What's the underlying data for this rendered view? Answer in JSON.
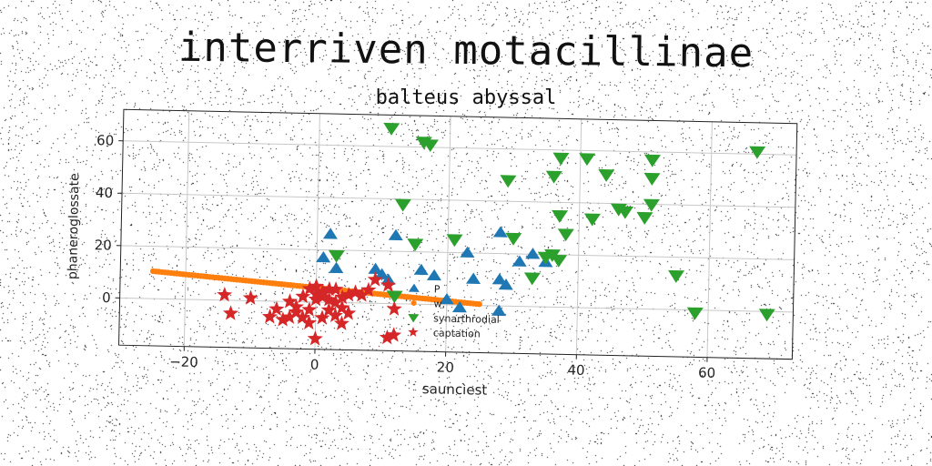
{
  "chart_data": {
    "type": "scatter",
    "title": "interriven motacillinae",
    "subtitle": "balteus abyssal",
    "xlabel": "sauncìest",
    "ylabel": "phanerοglossate",
    "xlim": [
      -30,
      73
    ],
    "ylim": [
      -18,
      72
    ],
    "xticks": [
      -20,
      0,
      20,
      40,
      60
    ],
    "yticks": [
      0,
      20,
      40,
      60
    ],
    "xtick_labels": [
      "−20",
      "0",
      "20",
      "40",
      "60"
    ],
    "ytick_labels": [
      "0",
      "20",
      "40",
      "60"
    ],
    "grid": true,
    "legend_position": "lower-center",
    "series": [
      {
        "name": "P",
        "marker": "triangle-up",
        "color": "#1f77b4",
        "points": [
          [
            1,
            17
          ],
          [
            2,
            26
          ],
          [
            3,
            13
          ],
          [
            9,
            13
          ],
          [
            10,
            11
          ],
          [
            11,
            9
          ],
          [
            12,
            26
          ],
          [
            16,
            13
          ],
          [
            18,
            11
          ],
          [
            20,
            2
          ],
          [
            23,
            20
          ],
          [
            24,
            10
          ],
          [
            28,
            28
          ],
          [
            28,
            10
          ],
          [
            29,
            8
          ],
          [
            31,
            17
          ],
          [
            33,
            20
          ],
          [
            35,
            17
          ],
          [
            28,
            -2
          ],
          [
            22,
            -1
          ]
        ]
      },
      {
        "name": "w,",
        "marker": "circle",
        "color": "#ff7f0e",
        "line": {
          "x_from": -25,
          "y_from": 10.5,
          "x_to": 25,
          "y_to": 0.5,
          "count": 110
        }
      },
      {
        "name": "synarthrodial",
        "marker": "triangle-down",
        "color": "#2ca02c",
        "points": [
          [
            11,
            67
          ],
          [
            17,
            61
          ],
          [
            16,
            62
          ],
          [
            13,
            38
          ],
          [
            15,
            23
          ],
          [
            3,
            18
          ],
          [
            21,
            25
          ],
          [
            29,
            48
          ],
          [
            30,
            26
          ],
          [
            36,
            50
          ],
          [
            37,
            57
          ],
          [
            37,
            35
          ],
          [
            38,
            28
          ],
          [
            36,
            20
          ],
          [
            35,
            19
          ],
          [
            33,
            11
          ],
          [
            37,
            18
          ],
          [
            41,
            57
          ],
          [
            44,
            51
          ],
          [
            46,
            38
          ],
          [
            42,
            34
          ],
          [
            47,
            37
          ],
          [
            50,
            35
          ],
          [
            51,
            57
          ],
          [
            51,
            50
          ],
          [
            51,
            40
          ],
          [
            55,
            13
          ],
          [
            58,
            -1
          ],
          [
            67,
            61
          ],
          [
            69,
            -1
          ],
          [
            12,
            3
          ]
        ]
      },
      {
        "name": "captation",
        "marker": "star",
        "color": "#d62728",
        "points": [
          [
            -14,
            2
          ],
          [
            -13,
            -5
          ],
          [
            -10,
            1
          ],
          [
            -7,
            -6
          ],
          [
            -6,
            -3
          ],
          [
            -5,
            -7
          ],
          [
            -4,
            0
          ],
          [
            -4,
            -6
          ],
          [
            -3,
            -2
          ],
          [
            -3,
            -4
          ],
          [
            -2,
            -6
          ],
          [
            -1,
            -3
          ],
          [
            -1,
            -8
          ],
          [
            0,
            -14
          ],
          [
            0,
            1
          ],
          [
            0,
            3
          ],
          [
            1,
            -6
          ],
          [
            1,
            4
          ],
          [
            2,
            -3
          ],
          [
            2,
            1
          ],
          [
            3,
            5
          ],
          [
            3,
            -5
          ],
          [
            4,
            -2
          ],
          [
            4,
            -8
          ],
          [
            5,
            -4
          ],
          [
            5,
            3
          ],
          [
            6,
            4
          ],
          [
            7,
            3
          ],
          [
            8,
            5
          ],
          [
            9,
            9
          ],
          [
            11,
            7
          ],
          [
            11,
            -13
          ],
          [
            12,
            -12
          ],
          [
            12,
            -2
          ],
          [
            -1,
            5
          ],
          [
            0,
            6
          ],
          [
            1,
            2
          ],
          [
            2,
            5
          ],
          [
            3,
            0
          ],
          [
            -2,
            2
          ],
          [
            4,
            2
          ]
        ]
      }
    ]
  }
}
